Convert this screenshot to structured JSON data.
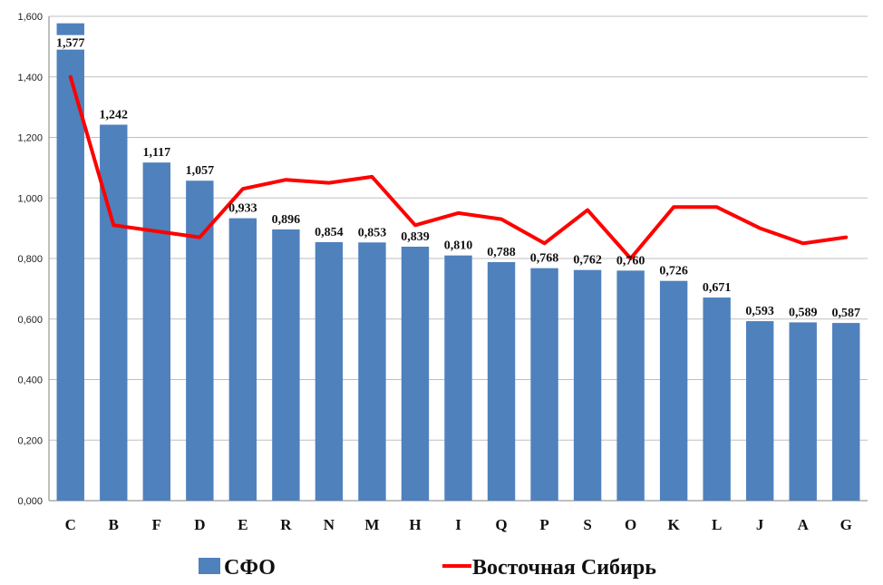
{
  "chart_data": {
    "type": "bar",
    "categories": [
      "C",
      "B",
      "F",
      "D",
      "E",
      "R",
      "N",
      "M",
      "H",
      "I",
      "Q",
      "P",
      "S",
      "O",
      "K",
      "L",
      "J",
      "A",
      "G"
    ],
    "series": [
      {
        "name": "СФО",
        "type": "bar",
        "color": "#4f81bd",
        "values": [
          1.577,
          1.242,
          1.117,
          1.057,
          0.933,
          0.896,
          0.854,
          0.853,
          0.839,
          0.81,
          0.788,
          0.768,
          0.762,
          0.76,
          0.726,
          0.671,
          0.593,
          0.589,
          0.587
        ],
        "labels": [
          "1,577",
          "1,242",
          "1,117",
          "1,057",
          "0,933",
          "0,896",
          "0,854",
          "0,853",
          "0,839",
          "0,810",
          "0,788",
          "0,768",
          "0,762",
          "0,760",
          "0,726",
          "0,671",
          "0,593",
          "0,589",
          "0,587"
        ]
      },
      {
        "name": "Восточная Сибирь",
        "type": "line",
        "color": "#ff0000",
        "values": [
          1.4,
          0.91,
          0.89,
          0.87,
          1.03,
          1.06,
          1.05,
          1.07,
          0.91,
          0.95,
          0.93,
          0.85,
          0.96,
          0.8,
          0.97,
          0.97,
          0.9,
          0.85,
          0.87
        ]
      }
    ],
    "ylim": [
      0,
      1.6
    ],
    "yticks": [
      0,
      0.2,
      0.4,
      0.6,
      0.8,
      1.0,
      1.2,
      1.4,
      1.6
    ],
    "ytick_labels": [
      "0,000",
      "0,200",
      "0,400",
      "0,600",
      "0,800",
      "1,000",
      "1,200",
      "1,400",
      "1,600"
    ],
    "grid": true,
    "legend_position": "bottom",
    "title": "",
    "xlabel": "",
    "ylabel": ""
  }
}
